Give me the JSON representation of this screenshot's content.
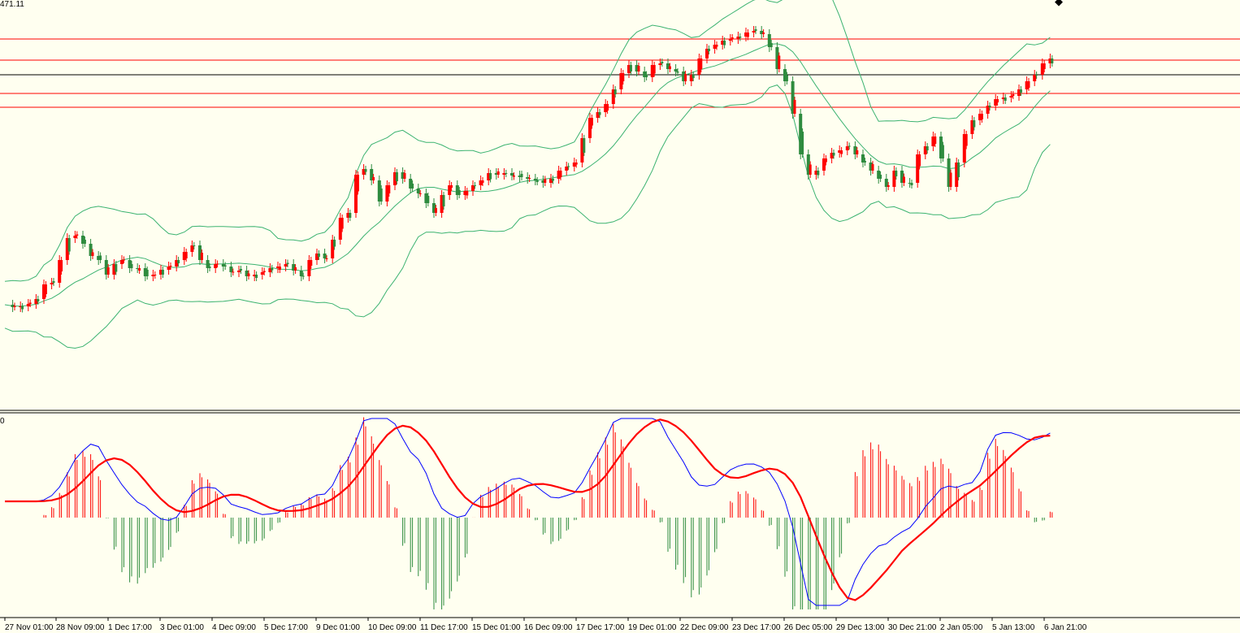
{
  "price_label": "471.11",
  "macd_zero_label": "0",
  "time_labels": [
    "27 Nov 01:00",
    "28 Nov 09:00",
    "1 Dec 17:00",
    "3 Dec 01:00",
    "4 Dec 09:00",
    "5 Dec 17:00",
    "9 Dec 01:00",
    "10 Dec 09:00",
    "11 Dec 17:00",
    "15 Dec 01:00",
    "16 Dec 09:00",
    "17 Dec 17:00",
    "19 Dec 01:00",
    "22 Dec 09:00",
    "23 Dec 17:00",
    "26 Dec 05:00",
    "29 Dec 13:00",
    "30 Dec 21:00",
    "2 Jan 05:00",
    "5 Jan 13:00",
    "6 Jan 21:00"
  ],
  "colors": {
    "background": "#fffff0",
    "bull_candle": "#ff0000",
    "bear_candle": "#2e8b3e",
    "bollinger": "#3cb371",
    "level_line": "#ff0000",
    "price_line": "#000000",
    "macd_line": "#0000ff",
    "signal_line": "#ff0000"
  },
  "chart_data": {
    "type": "candlestick",
    "candles_sample": "price series shown as candlesticks with Bollinger bands",
    "close_path": [
      [
        0,
        375
      ],
      [
        2,
        378
      ],
      [
        4,
        377
      ],
      [
        6,
        374
      ],
      [
        8,
        368
      ],
      [
        10,
        350
      ],
      [
        12,
        348
      ],
      [
        14,
        320
      ],
      [
        16,
        293
      ],
      [
        18,
        290
      ],
      [
        20,
        300
      ],
      [
        22,
        315
      ],
      [
        24,
        320
      ],
      [
        26,
        338
      ],
      [
        28,
        325
      ],
      [
        30,
        320
      ],
      [
        32,
        330
      ],
      [
        34,
        330
      ],
      [
        36,
        340
      ],
      [
        38,
        338
      ],
      [
        40,
        332
      ],
      [
        42,
        328
      ],
      [
        44,
        320
      ],
      [
        46,
        310
      ],
      [
        48,
        302
      ],
      [
        50,
        320
      ],
      [
        52,
        330
      ],
      [
        54,
        325
      ],
      [
        56,
        328
      ],
      [
        58,
        335
      ],
      [
        60,
        333
      ],
      [
        62,
        340
      ],
      [
        64,
        338
      ],
      [
        66,
        335
      ],
      [
        68,
        330
      ],
      [
        70,
        328
      ],
      [
        72,
        325
      ],
      [
        74,
        333
      ],
      [
        76,
        340
      ],
      [
        78,
        320
      ],
      [
        80,
        312
      ],
      [
        82,
        318
      ],
      [
        84,
        295
      ],
      [
        86,
        268
      ],
      [
        88,
        262
      ],
      [
        90,
        215
      ],
      [
        92,
        208
      ],
      [
        94,
        222
      ],
      [
        96,
        248
      ],
      [
        98,
        228
      ],
      [
        100,
        212
      ],
      [
        102,
        220
      ],
      [
        104,
        232
      ],
      [
        106,
        238
      ],
      [
        108,
        250
      ],
      [
        110,
        262
      ],
      [
        112,
        240
      ],
      [
        114,
        228
      ],
      [
        116,
        240
      ],
      [
        118,
        235
      ],
      [
        120,
        228
      ],
      [
        122,
        222
      ],
      [
        124,
        213
      ],
      [
        126,
        215
      ],
      [
        128,
        213
      ],
      [
        130,
        216
      ],
      [
        132,
        218
      ],
      [
        134,
        220
      ],
      [
        136,
        222
      ],
      [
        138,
        225
      ],
      [
        140,
        220
      ],
      [
        142,
        210
      ],
      [
        144,
        205
      ],
      [
        146,
        200
      ],
      [
        148,
        170
      ],
      [
        150,
        145
      ],
      [
        152,
        138
      ],
      [
        154,
        128
      ],
      [
        156,
        110
      ],
      [
        158,
        90
      ],
      [
        160,
        80
      ],
      [
        162,
        88
      ],
      [
        164,
        95
      ],
      [
        166,
        80
      ],
      [
        168,
        78
      ],
      [
        170,
        85
      ],
      [
        172,
        88
      ],
      [
        174,
        100
      ],
      [
        176,
        92
      ],
      [
        178,
        72
      ],
      [
        180,
        60
      ],
      [
        182,
        55
      ],
      [
        184,
        50
      ],
      [
        186,
        48
      ],
      [
        188,
        45
      ],
      [
        190,
        40
      ],
      [
        192,
        38
      ],
      [
        194,
        42
      ],
      [
        196,
        58
      ],
      [
        198,
        85
      ],
      [
        200,
        100
      ],
      [
        202,
        140
      ],
      [
        204,
        190
      ],
      [
        206,
        215
      ],
      [
        208,
        210
      ],
      [
        210,
        195
      ],
      [
        212,
        188
      ],
      [
        214,
        185
      ],
      [
        216,
        180
      ],
      [
        218,
        190
      ],
      [
        220,
        200
      ],
      [
        222,
        210
      ],
      [
        224,
        220
      ],
      [
        226,
        230
      ],
      [
        228,
        210
      ],
      [
        230,
        225
      ],
      [
        232,
        225
      ],
      [
        234,
        190
      ],
      [
        236,
        180
      ],
      [
        238,
        168
      ],
      [
        240,
        195
      ],
      [
        242,
        230
      ],
      [
        244,
        200
      ],
      [
        246,
        165
      ],
      [
        248,
        148
      ],
      [
        250,
        140
      ],
      [
        252,
        130
      ],
      [
        254,
        122
      ],
      [
        256,
        120
      ],
      [
        258,
        118
      ],
      [
        260,
        110
      ],
      [
        262,
        100
      ],
      [
        264,
        92
      ],
      [
        266,
        78
      ],
      [
        268,
        72
      ]
    ],
    "macd_histogram_sample": "vertical bars around zero line",
    "horizontal_levels_red": [
      48,
      74,
      115,
      132
    ],
    "horizontal_level_black": [
      92
    ]
  }
}
